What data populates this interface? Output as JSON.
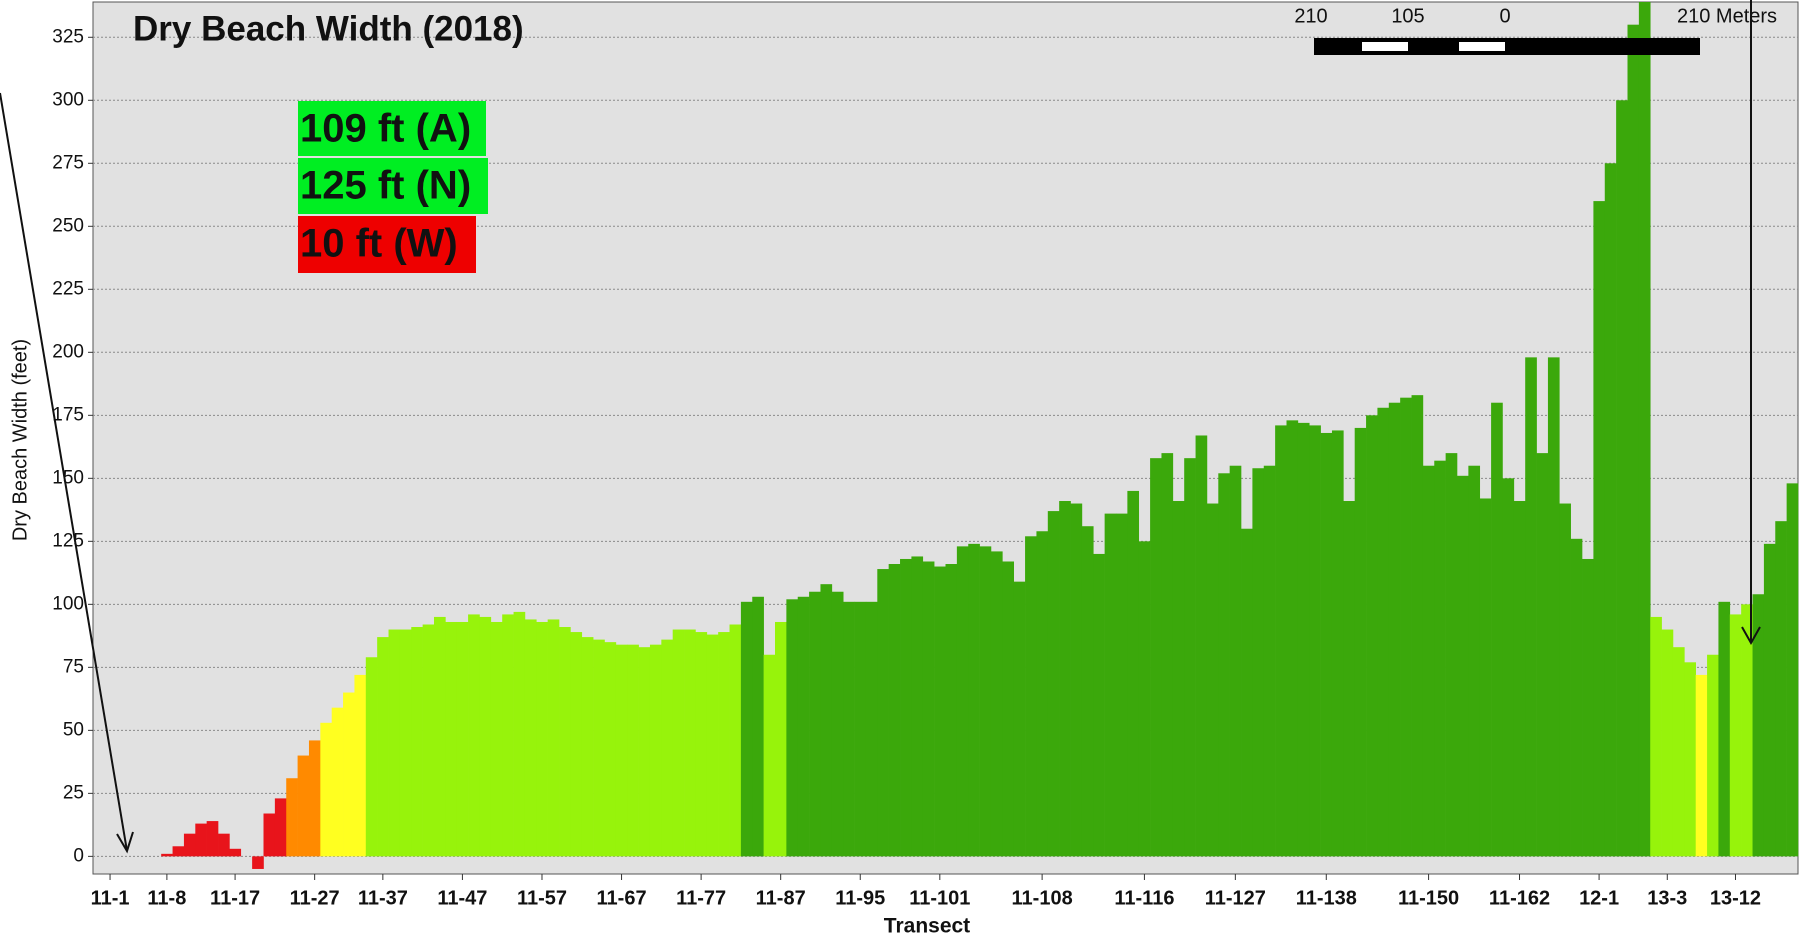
{
  "chart_data": {
    "type": "bar",
    "title": "Dry Beach Width (2018)",
    "x_label": "Transect",
    "y_label": "Dry Beach Width (feet)",
    "annotations": [
      "109 ft (A)",
      "125 ft (N)",
      "10 ft (W)"
    ],
    "scale_bar_labels": [
      "210",
      "105",
      "0",
      "210 Meters"
    ],
    "categories": [
      null,
      "11-1",
      null,
      null,
      null,
      null,
      "11-8",
      null,
      null,
      null,
      null,
      null,
      "11-17",
      null,
      null,
      null,
      null,
      null,
      null,
      "11-27",
      null,
      null,
      null,
      null,
      null,
      "11-37",
      null,
      null,
      null,
      null,
      null,
      null,
      "11-47",
      null,
      null,
      null,
      null,
      null,
      null,
      "11-57",
      null,
      null,
      null,
      null,
      null,
      null,
      "11-67",
      null,
      null,
      null,
      null,
      null,
      null,
      "11-77",
      null,
      null,
      null,
      null,
      null,
      null,
      "11-87",
      null,
      null,
      null,
      null,
      null,
      null,
      "11-95",
      null,
      null,
      null,
      null,
      null,
      null,
      "11-101",
      null,
      null,
      null,
      null,
      null,
      null,
      null,
      null,
      "11-108",
      null,
      null,
      null,
      null,
      null,
      null,
      null,
      null,
      "11-116",
      null,
      null,
      null,
      null,
      null,
      null,
      null,
      "11-127",
      null,
      null,
      null,
      null,
      null,
      null,
      null,
      "11-138",
      null,
      null,
      null,
      null,
      null,
      null,
      null,
      null,
      "11-150",
      null,
      null,
      null,
      null,
      null,
      null,
      null,
      "11-162",
      null,
      null,
      null,
      null,
      null,
      null,
      "12-1",
      null,
      null,
      null,
      null,
      null,
      "13-3",
      null,
      null,
      null,
      null,
      null,
      "13-12",
      null,
      null,
      null,
      null,
      null
    ],
    "values": [
      0,
      0,
      0,
      0,
      0,
      0,
      1,
      4,
      9,
      13,
      14,
      9,
      3,
      0,
      -5,
      17,
      23,
      31,
      40,
      46,
      53,
      59,
      65,
      72,
      79,
      87,
      90,
      90,
      91,
      92,
      95,
      93,
      93,
      96,
      95,
      93,
      96,
      97,
      94,
      93,
      94,
      91,
      89,
      87,
      86,
      85,
      84,
      84,
      83,
      84,
      86,
      90,
      90,
      89,
      88,
      89,
      92,
      101,
      103,
      80,
      93,
      102,
      103,
      105,
      108,
      105,
      101,
      101,
      101,
      114,
      116,
      118,
      119,
      117,
      115,
      116,
      123,
      124,
      123,
      121,
      117,
      109,
      127,
      129,
      137,
      141,
      140,
      131,
      120,
      136,
      136,
      145,
      125,
      158,
      160,
      141,
      158,
      167,
      140,
      152,
      155,
      130,
      154,
      155,
      171,
      173,
      172,
      171,
      168,
      169,
      141,
      170,
      175,
      178,
      180,
      182,
      183,
      155,
      157,
      160,
      151,
      155,
      142,
      180,
      150,
      141,
      198,
      160,
      198,
      140,
      126,
      118,
      260,
      275,
      300,
      330,
      339,
      95,
      90,
      83,
      77,
      72,
      80,
      101,
      96,
      100,
      104,
      124,
      133,
      148
    ],
    "colors": [
      "#e8141b",
      "#e8141b",
      "#e8141b",
      "#e8141b",
      "#e8141b",
      "#e8141b",
      "#e8141b",
      "#e8141b",
      "#e8141b",
      "#e8141b",
      "#e8141b",
      "#e8141b",
      "#e8141b",
      "#e8141b",
      "#e8141b",
      "#e8141b",
      "#e8141b",
      "#ff8a00",
      "#ff8a00",
      "#ff8a00",
      "#ffff20",
      "#ffff20",
      "#ffff20",
      "#ffff20",
      "#97f30b",
      "#97f30b",
      "#97f30b",
      "#97f30b",
      "#97f30b",
      "#97f30b",
      "#97f30b",
      "#97f30b",
      "#97f30b",
      "#97f30b",
      "#97f30b",
      "#97f30b",
      "#97f30b",
      "#97f30b",
      "#97f30b",
      "#97f30b",
      "#97f30b",
      "#97f30b",
      "#97f30b",
      "#97f30b",
      "#97f30b",
      "#97f30b",
      "#97f30b",
      "#97f30b",
      "#97f30b",
      "#97f30b",
      "#97f30b",
      "#97f30b",
      "#97f30b",
      "#97f30b",
      "#97f30b",
      "#97f30b",
      "#97f30b",
      "#3ba80b",
      "#3ba80b",
      "#97f30b",
      "#97f30b",
      "#3ba80b",
      "#3ba80b",
      "#3ba80b",
      "#3ba80b",
      "#3ba80b",
      "#3ba80b",
      "#3ba80b",
      "#3ba80b",
      "#3ba80b",
      "#3ba80b",
      "#3ba80b",
      "#3ba80b",
      "#3ba80b",
      "#3ba80b",
      "#3ba80b",
      "#3ba80b",
      "#3ba80b",
      "#3ba80b",
      "#3ba80b",
      "#3ba80b",
      "#3ba80b",
      "#3ba80b",
      "#3ba80b",
      "#3ba80b",
      "#3ba80b",
      "#3ba80b",
      "#3ba80b",
      "#3ba80b",
      "#3ba80b",
      "#3ba80b",
      "#3ba80b",
      "#3ba80b",
      "#3ba80b",
      "#3ba80b",
      "#3ba80b",
      "#3ba80b",
      "#3ba80b",
      "#3ba80b",
      "#3ba80b",
      "#3ba80b",
      "#3ba80b",
      "#3ba80b",
      "#3ba80b",
      "#3ba80b",
      "#3ba80b",
      "#3ba80b",
      "#3ba80b",
      "#3ba80b",
      "#3ba80b",
      "#3ba80b",
      "#3ba80b",
      "#3ba80b",
      "#3ba80b",
      "#3ba80b",
      "#3ba80b",
      "#3ba80b",
      "#3ba80b",
      "#3ba80b",
      "#3ba80b",
      "#3ba80b",
      "#3ba80b",
      "#3ba80b",
      "#3ba80b",
      "#3ba80b",
      "#3ba80b",
      "#3ba80b",
      "#3ba80b",
      "#3ba80b",
      "#3ba80b",
      "#3ba80b",
      "#3ba80b",
      "#3ba80b",
      "#3ba80b",
      "#3ba80b",
      "#3ba80b",
      "#3ba80b",
      "#97f30b",
      "#97f30b",
      "#97f30b",
      "#97f30b",
      "#ffff20",
      "#97f30b",
      "#3ba80b",
      "#97f30b",
      "#97f30b",
      "#3ba80b",
      "#3ba80b",
      "#3ba80b",
      "#3ba80b"
    ],
    "ylim": [
      -7,
      339
    ],
    "yticks": [
      0,
      25,
      50,
      75,
      100,
      125,
      150,
      175,
      200,
      225,
      250,
      275,
      300,
      325
    ],
    "grid": true
  }
}
